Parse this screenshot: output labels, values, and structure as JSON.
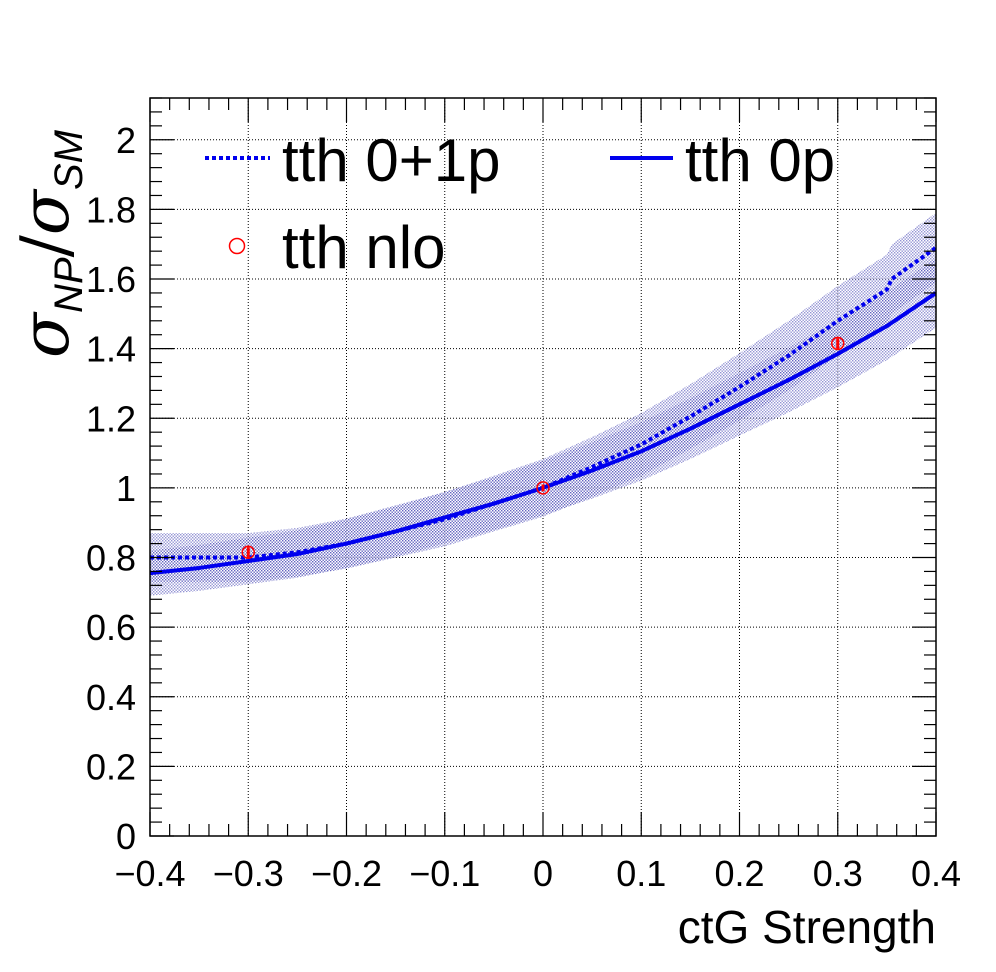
{
  "chart_data": {
    "type": "line",
    "xlabel": "ctG Strength",
    "ylabel": {
      "sym1": "σ",
      "sub1": "NP",
      "slash": "/",
      "sym2": "σ",
      "sub2": "SM"
    },
    "xlim": [
      -0.4,
      0.4
    ],
    "ylim": [
      0,
      2.12
    ],
    "xticks": [
      -0.4,
      -0.3,
      -0.2,
      -0.1,
      0,
      0.1,
      0.2,
      0.3,
      0.4
    ],
    "xtick_labels": [
      "−0.4",
      "−0.3",
      "−0.2",
      "−0.1",
      "0",
      "0.1",
      "0.2",
      "0.3",
      "0.4"
    ],
    "yticks": [
      0,
      0.2,
      0.4,
      0.6,
      0.8,
      1,
      1.2,
      1.4,
      1.6,
      1.8,
      2
    ],
    "ytick_labels": [
      "0",
      "0.2",
      "0.4",
      "0.6",
      "0.8",
      "1",
      "1.2",
      "1.4",
      "1.6",
      "1.8",
      "2"
    ],
    "grid": true,
    "legend_position": "top",
    "colors": {
      "blue": "#0000ee",
      "band": "#3b3bb0",
      "red": "#ff0000"
    },
    "series": [
      {
        "name": "tth 0+1p",
        "style": "dotted",
        "x": [
          -0.4,
          -0.35,
          -0.3,
          -0.25,
          -0.2,
          -0.15,
          -0.1,
          -0.05,
          0,
          0.05,
          0.1,
          0.15,
          0.2,
          0.25,
          0.3,
          0.35,
          0.355,
          0.4
        ],
        "y": [
          0.8,
          0.8,
          0.8,
          0.815,
          0.84,
          0.875,
          0.91,
          0.955,
          1.0,
          1.06,
          1.125,
          1.205,
          1.29,
          1.38,
          1.48,
          1.57,
          1.6,
          1.69
        ],
        "band": [
          0.07,
          0.07,
          0.07,
          0.07,
          0.072,
          0.075,
          0.078,
          0.08,
          0.083,
          0.086,
          0.09,
          0.093,
          0.097,
          0.1,
          0.1,
          0.1,
          0.1,
          0.1
        ]
      },
      {
        "name": "tth 0p",
        "style": "solid",
        "x": [
          -0.4,
          -0.35,
          -0.3,
          -0.25,
          -0.2,
          -0.15,
          -0.1,
          -0.05,
          0,
          0.05,
          0.1,
          0.15,
          0.2,
          0.25,
          0.3,
          0.35,
          0.4
        ],
        "y": [
          0.755,
          0.77,
          0.79,
          0.81,
          0.84,
          0.875,
          0.915,
          0.955,
          1.0,
          1.05,
          1.105,
          1.17,
          1.24,
          1.31,
          1.385,
          1.465,
          1.56
        ],
        "band": [
          0.065,
          0.066,
          0.067,
          0.068,
          0.07,
          0.072,
          0.074,
          0.076,
          0.078,
          0.081,
          0.084,
          0.087,
          0.09,
          0.093,
          0.096,
          0.098,
          0.1
        ]
      },
      {
        "name": "tth nlo",
        "style": "markers",
        "x": [
          -0.3,
          0,
          0.3
        ],
        "y": [
          0.815,
          1.0,
          1.415
        ],
        "err": [
          0.015,
          0.01,
          0.015
        ]
      }
    ]
  }
}
